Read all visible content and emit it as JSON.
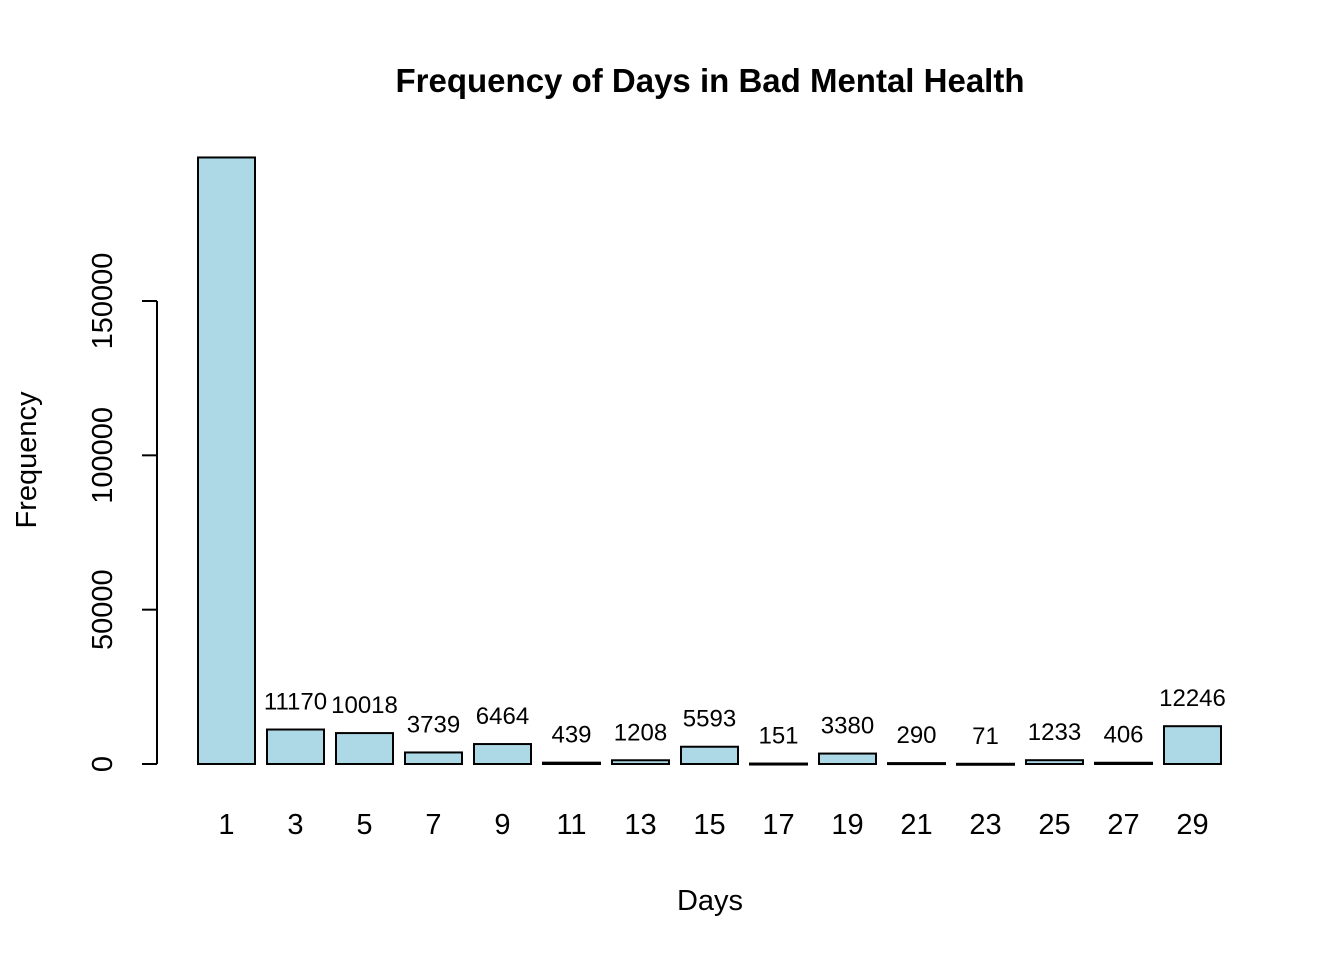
{
  "chart_data": {
    "type": "bar",
    "title": "Frequency of Days in Bad Mental Health",
    "xlabel": "Days",
    "ylabel": "Frequency",
    "categories": [
      "1",
      "3",
      "5",
      "7",
      "9",
      "11",
      "13",
      "15",
      "17",
      "19",
      "21",
      "23",
      "25",
      "27",
      "29"
    ],
    "values": [
      196500,
      11170,
      10018,
      3739,
      6464,
      439,
      1208,
      5593,
      151,
      3380,
      290,
      71,
      1233,
      406,
      12246
    ],
    "data_labels": [
      "",
      "11170",
      "10018",
      "3739",
      "6464",
      "439",
      "1208",
      "5593",
      "151",
      "3380",
      "290",
      "71",
      "1233",
      "406",
      "12246"
    ],
    "yticks": [
      0,
      50000,
      100000,
      150000
    ],
    "ytick_labels": [
      "0",
      "50000",
      "100000",
      "150000"
    ],
    "bar_color": "#add8e6",
    "grid": false,
    "legend": "none"
  }
}
